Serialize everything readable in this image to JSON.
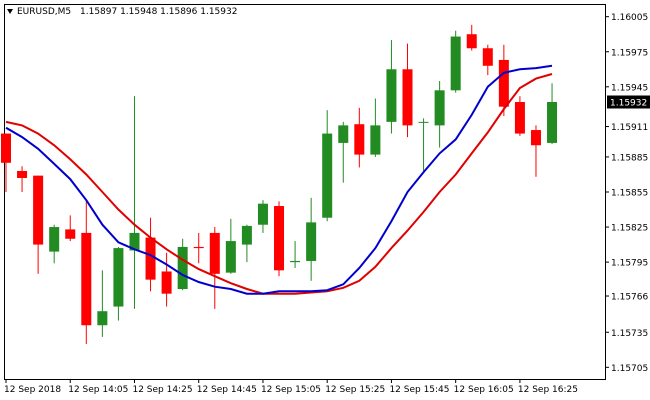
{
  "header": {
    "symbol": "EURUSD,M5",
    "ohlc": "1.15897 1.15948 1.15896 1.15932"
  },
  "chart_data": {
    "type": "candlestick",
    "title": "EURUSD,M5",
    "ylim": [
      1.15695,
      1.16015
    ],
    "grid": false,
    "colors": {
      "bull": "#228b22",
      "bear": "#ff0000",
      "ma_fast": "#0000cd",
      "ma_slow": "#e00000",
      "frame": "#000000"
    },
    "y_ticks": [
      "1.16005",
      "1.15975",
      "1.15945",
      "1.15911",
      "1.15885",
      "1.15855",
      "1.15825",
      "1.15795",
      "1.15766",
      "1.15735",
      "1.15705"
    ],
    "x_ticks": [
      {
        "index": 0,
        "label": "12 Sep 2018"
      },
      {
        "index": 4,
        "label": "12 Sep 14:05"
      },
      {
        "index": 8,
        "label": "12 Sep 14:25"
      },
      {
        "index": 12,
        "label": "12 Sep 14:45"
      },
      {
        "index": 16,
        "label": "12 Sep 15:05"
      },
      {
        "index": 20,
        "label": "12 Sep 15:25"
      },
      {
        "index": 24,
        "label": "12 Sep 15:45"
      },
      {
        "index": 28,
        "label": "12 Sep 16:05"
      },
      {
        "index": 32,
        "label": "12 Sep 16:25"
      }
    ],
    "price_marker": "1.15932",
    "candles": [
      {
        "o": 1.15905,
        "h": 1.15905,
        "l": 1.15855,
        "c": 1.1588
      },
      {
        "o": 1.15873,
        "h": 1.15877,
        "l": 1.15855,
        "c": 1.15867
      },
      {
        "o": 1.15869,
        "h": 1.15869,
        "l": 1.15785,
        "c": 1.1581
      },
      {
        "o": 1.15804,
        "h": 1.15827,
        "l": 1.15794,
        "c": 1.15825
      },
      {
        "o": 1.15823,
        "h": 1.15835,
        "l": 1.15813,
        "c": 1.15815
      },
      {
        "o": 1.1582,
        "h": 1.15848,
        "l": 1.15725,
        "c": 1.15741
      },
      {
        "o": 1.15741,
        "h": 1.15788,
        "l": 1.15731,
        "c": 1.15753
      },
      {
        "o": 1.15757,
        "h": 1.15808,
        "l": 1.15745,
        "c": 1.15807
      },
      {
        "o": 1.15805,
        "h": 1.15937,
        "l": 1.15755,
        "c": 1.1582
      },
      {
        "o": 1.15816,
        "h": 1.15833,
        "l": 1.1577,
        "c": 1.1578
      },
      {
        "o": 1.15787,
        "h": 1.15803,
        "l": 1.15757,
        "c": 1.15768
      },
      {
        "o": 1.15772,
        "h": 1.15815,
        "l": 1.15771,
        "c": 1.15808
      },
      {
        "o": 1.15808,
        "h": 1.1582,
        "l": 1.15794,
        "c": 1.15807
      },
      {
        "o": 1.1582,
        "h": 1.15825,
        "l": 1.15755,
        "c": 1.15785
      },
      {
        "o": 1.15786,
        "h": 1.15832,
        "l": 1.15785,
        "c": 1.15813
      },
      {
        "o": 1.1581,
        "h": 1.15827,
        "l": 1.15795,
        "c": 1.15826
      },
      {
        "o": 1.15827,
        "h": 1.15848,
        "l": 1.1582,
        "c": 1.15845
      },
      {
        "o": 1.15843,
        "h": 1.15847,
        "l": 1.15783,
        "c": 1.15788
      },
      {
        "o": 1.15795,
        "h": 1.15813,
        "l": 1.1579,
        "c": 1.15796
      },
      {
        "o": 1.15796,
        "h": 1.1585,
        "l": 1.15779,
        "c": 1.15829
      },
      {
        "o": 1.15833,
        "h": 1.15925,
        "l": 1.1583,
        "c": 1.15905
      },
      {
        "o": 1.15897,
        "h": 1.15915,
        "l": 1.15863,
        "c": 1.15912
      },
      {
        "o": 1.15913,
        "h": 1.15927,
        "l": 1.15876,
        "c": 1.15887
      },
      {
        "o": 1.15887,
        "h": 1.15935,
        "l": 1.15885,
        "c": 1.15912
      },
      {
        "o": 1.15915,
        "h": 1.15985,
        "l": 1.15905,
        "c": 1.1596
      },
      {
        "o": 1.1596,
        "h": 1.15982,
        "l": 1.15902,
        "c": 1.15912
      },
      {
        "o": 1.15915,
        "h": 1.15918,
        "l": 1.15873,
        "c": 1.15915
      },
      {
        "o": 1.15912,
        "h": 1.1595,
        "l": 1.15893,
        "c": 1.15942
      },
      {
        "o": 1.15942,
        "h": 1.15993,
        "l": 1.1594,
        "c": 1.15988
      },
      {
        "o": 1.1599,
        "h": 1.15998,
        "l": 1.15976,
        "c": 1.15978
      },
      {
        "o": 1.15978,
        "h": 1.15981,
        "l": 1.15955,
        "c": 1.15963
      },
      {
        "o": 1.15968,
        "h": 1.15981,
        "l": 1.1592,
        "c": 1.15928
      },
      {
        "o": 1.15932,
        "h": 1.15937,
        "l": 1.15903,
        "c": 1.15905
      },
      {
        "o": 1.15908,
        "h": 1.15912,
        "l": 1.15868,
        "c": 1.15895
      },
      {
        "o": 1.15897,
        "h": 1.15948,
        "l": 1.15896,
        "c": 1.15932
      }
    ],
    "ma_fast": [
      1.1591,
      1.15902,
      1.15892,
      1.15879,
      1.15866,
      1.15848,
      1.15827,
      1.15812,
      1.15806,
      1.15801,
      1.15793,
      1.15784,
      1.15778,
      1.15774,
      1.15772,
      1.15768,
      1.15768,
      1.1577,
      1.1577,
      1.1577,
      1.15771,
      1.15776,
      1.1579,
      1.15807,
      1.1583,
      1.15855,
      1.15872,
      1.15888,
      1.159,
      1.15921,
      1.15945,
      1.15957,
      1.1596,
      1.15961,
      1.15963
    ],
    "ma_slow": [
      1.15915,
      1.15912,
      1.15905,
      1.15895,
      1.15883,
      1.1587,
      1.15855,
      1.1584,
      1.15827,
      1.15816,
      1.15806,
      1.15797,
      1.15789,
      1.15783,
      1.15777,
      1.15772,
      1.15768,
      1.15768,
      1.15768,
      1.15769,
      1.1577,
      1.15773,
      1.15779,
      1.15791,
      1.15807,
      1.15822,
      1.15838,
      1.15855,
      1.1587,
      1.15888,
      1.15906,
      1.15926,
      1.15944,
      1.15952,
      1.15956
    ]
  }
}
